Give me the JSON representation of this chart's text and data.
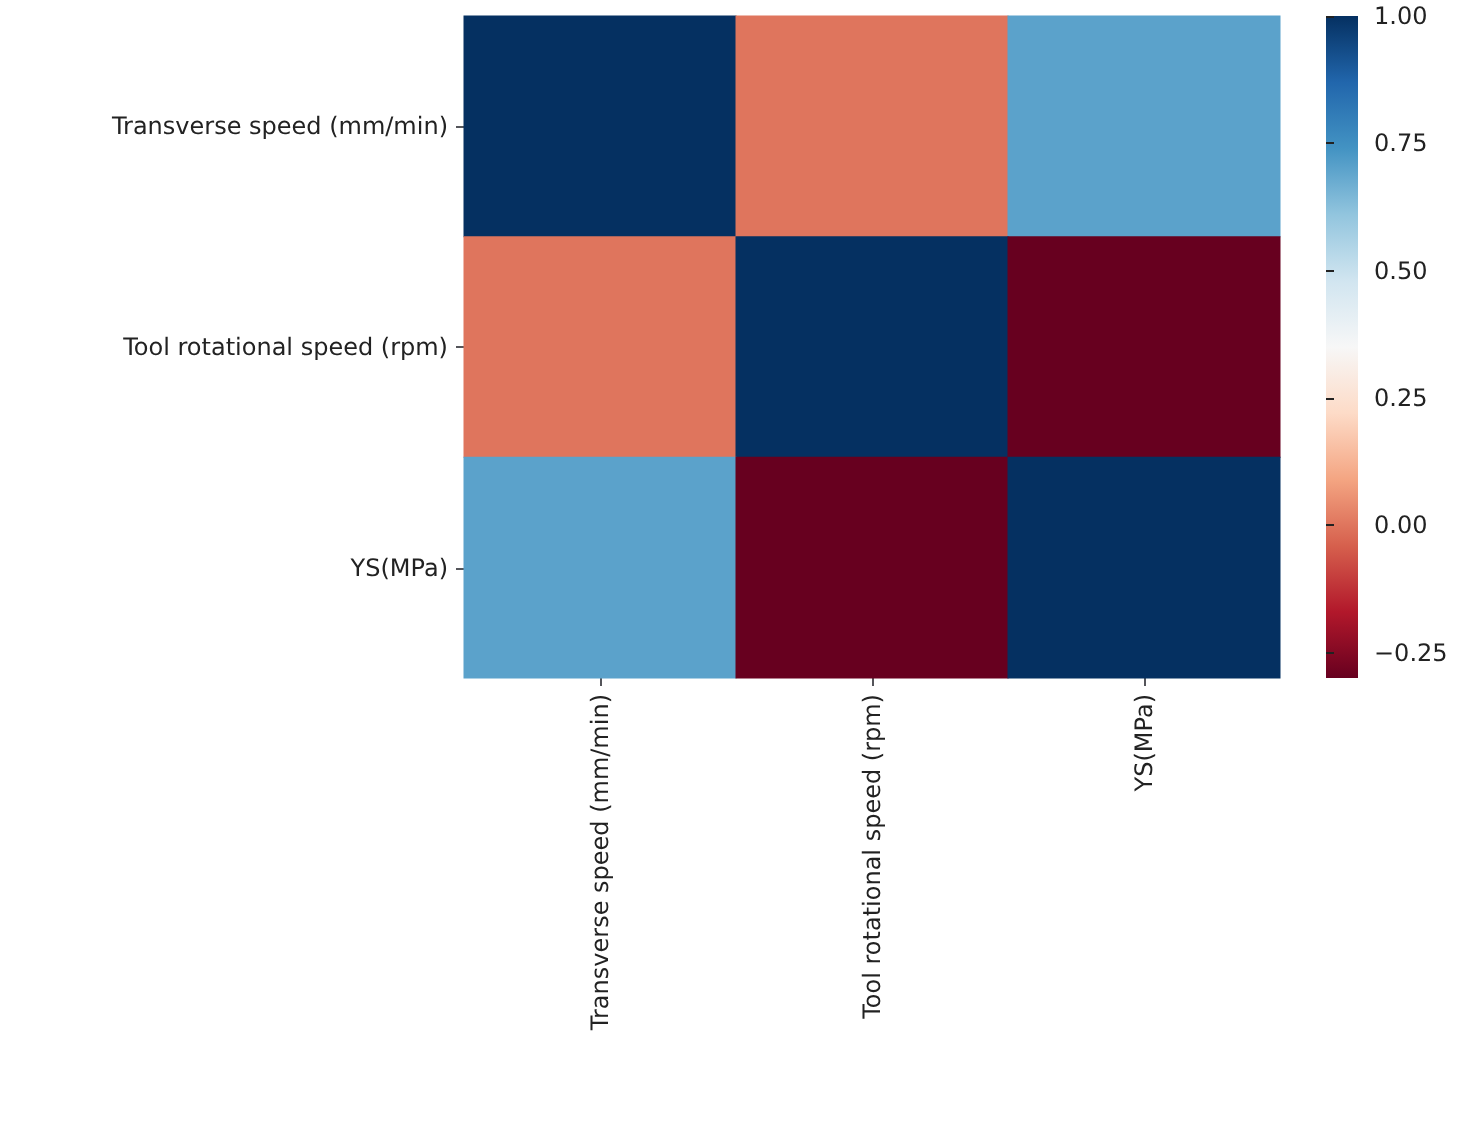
{
  "chart_data": {
    "type": "heatmap",
    "categories": [
      "Transverse speed (mm/min)",
      "Tool rotational speed (rpm)",
      "YS(MPa)"
    ],
    "y_categories": [
      "Transverse speed (mm/min)",
      "Tool rotational speed (rpm)",
      "YS(MPa)"
    ],
    "cells": [
      [
        1,
        0,
        0.7
      ],
      [
        0,
        1,
        -0.3
      ],
      [
        0.7,
        -0.3,
        1
      ]
    ],
    "clim": [
      -0.3,
      1
    ],
    "cticks": [
      {
        "value": -0.25,
        "label": "−0.25"
      },
      {
        "value": 0,
        "label": "0.00"
      },
      {
        "value": 0.25,
        "label": "0.25"
      },
      {
        "value": 0.5,
        "label": "0.50"
      },
      {
        "value": 0.75,
        "label": "0.75"
      },
      {
        "value": 1,
        "label": "1.00"
      }
    ]
  }
}
